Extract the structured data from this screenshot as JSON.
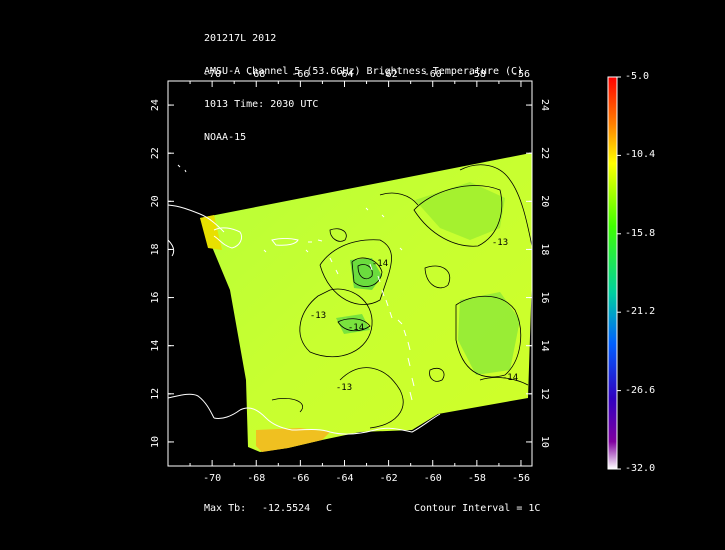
{
  "header": {
    "line1": "201217L 2012",
    "line2": "AMSU-A Channel 5 (53.6GHz) Brightness Temperature (C)",
    "line3": "1013 Time: 2030 UTC",
    "line4": "NOAA-15"
  },
  "footer": {
    "max_label": "Max Tb:",
    "max_value": "-12.5524",
    "max_unit": "C",
    "contour_interval": "Contour Interval = 1C"
  },
  "map": {
    "lon_range": [
      -72,
      -55.5
    ],
    "lat_range": [
      9,
      25
    ],
    "lon_ticks": [
      "-70",
      "-68",
      "-66",
      "-64",
      "-62",
      "-60",
      "-58",
      "-56"
    ],
    "lat_ticks": [
      "10",
      "12",
      "14",
      "16",
      "18",
      "20",
      "22",
      "24"
    ],
    "contour_labels": [
      "-13",
      "-14",
      "-13",
      "-14",
      "-14",
      "-13"
    ]
  },
  "colorbar": {
    "labels": [
      "-5.0",
      "-10.4",
      "-15.8",
      "-21.2",
      "-26.6",
      "-32.0"
    ],
    "colors": [
      "#ff0000",
      "#ff8800",
      "#ffff00",
      "#00ff00",
      "#00aaff",
      "#0000ff",
      "#8800aa",
      "#ffffff"
    ]
  },
  "colors": {
    "swath_low": "#ccff33",
    "swath_mid": "#a8f02a",
    "swath_hot": "#f0c000"
  }
}
